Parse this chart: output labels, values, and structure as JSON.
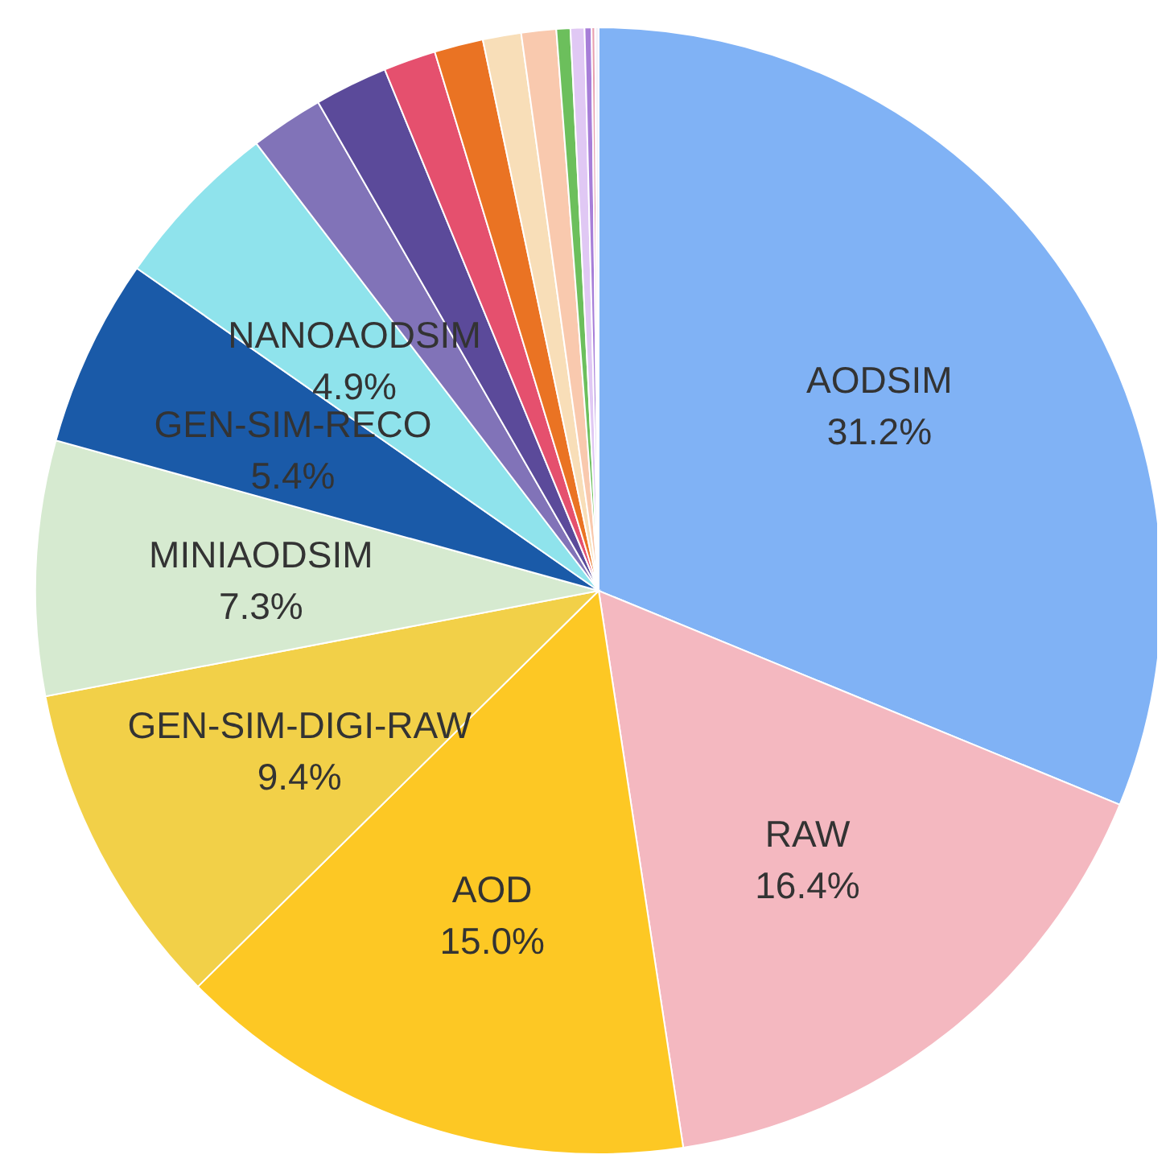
{
  "chart_data": {
    "type": "pie",
    "categories": [
      "AODSIM",
      "RAW",
      "AOD",
      "GEN-SIM-DIGI-RAW",
      "MINIAODSIM",
      "GEN-SIM-RECO",
      "NANOAODSIM",
      null,
      null,
      null,
      null,
      null,
      null,
      null,
      null,
      null,
      null,
      null
    ],
    "values": [
      31.2,
      16.4,
      15.0,
      9.4,
      7.3,
      5.4,
      4.9,
      2.1,
      2.1,
      1.5,
      1.4,
      1.1,
      1.0,
      0.4,
      0.4,
      0.2,
      0.1,
      0.1
    ],
    "value_labels": [
      "31.2%",
      "16.4%",
      "15.0%",
      "9.4%",
      "7.3%",
      "5.4%",
      "4.9%",
      null,
      null,
      null,
      null,
      null,
      null,
      null,
      null,
      null,
      null,
      null
    ],
    "colors": [
      "#80b2f5",
      "#f4b8c0",
      "#fdc824",
      "#f2d048",
      "#d6ead0",
      "#1a5aa8",
      "#8fe3ec",
      "#8173b8",
      "#5b4a9a",
      "#e5506e",
      "#ea7323",
      "#f8deb8",
      "#f9c9ae",
      "#6cbf5c",
      "#e0c8f4",
      "#a77ed8",
      "#e8a0b0",
      "#f4f0f8"
    ]
  }
}
